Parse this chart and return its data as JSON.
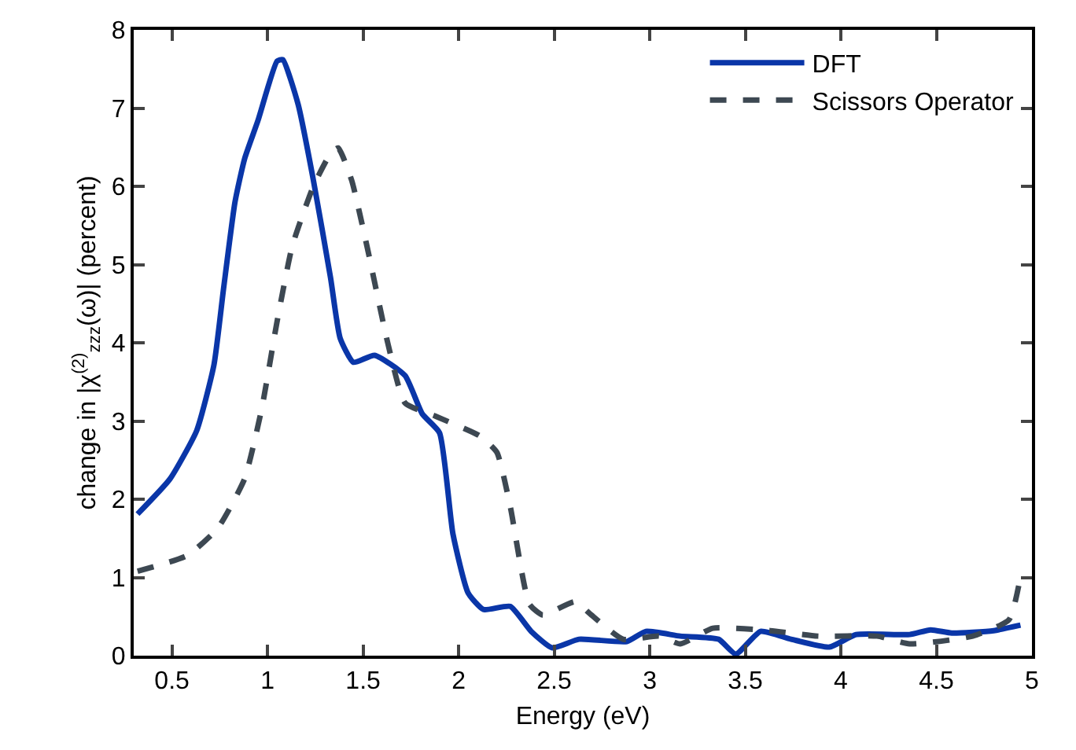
{
  "chart_data": {
    "type": "line",
    "xlabel": "Energy (eV)",
    "ylabel": "change in |χ$^{(2)}$$_{zzz}$(ω)| (percent)",
    "xlim": [
      0.3,
      5
    ],
    "ylim": [
      0,
      8
    ],
    "xticks": [
      0.5,
      1,
      1.5,
      2,
      2.5,
      3,
      3.5,
      4,
      4.5,
      5
    ],
    "yticks": [
      0,
      1,
      2,
      3,
      4,
      5,
      6,
      7,
      8
    ],
    "legend": "top right",
    "marker": "none",
    "series": [
      {
        "name": "DFT",
        "color": "#0a36a8",
        "line_style": "solid",
        "x": [
          0.32,
          0.49,
          0.63,
          0.72,
          0.77,
          0.83,
          0.88,
          0.95,
          1.05,
          1.08,
          1.16,
          1.24,
          1.33,
          1.38,
          1.45,
          1.56,
          1.72,
          1.81,
          1.9,
          1.97,
          2.05,
          2.13,
          2.27,
          2.38,
          2.49,
          2.63,
          2.88,
          2.98,
          3.16,
          3.36,
          3.45,
          3.58,
          3.74,
          3.94,
          4.08,
          4.36,
          4.47,
          4.58,
          4.8,
          4.94
        ],
        "values": [
          1.81,
          2.26,
          2.88,
          3.72,
          4.69,
          5.8,
          6.35,
          6.84,
          7.6,
          7.62,
          7.05,
          6.08,
          4.83,
          4.06,
          3.75,
          3.84,
          3.58,
          3.09,
          2.85,
          1.56,
          0.8,
          0.59,
          0.63,
          0.31,
          0.1,
          0.21,
          0.18,
          0.31,
          0.25,
          0.21,
          0.02,
          0.31,
          0.21,
          0.11,
          0.27,
          0.27,
          0.33,
          0.29,
          0.32,
          0.39
        ]
      },
      {
        "name": "Scissors Operator",
        "color": "#3d4852",
        "line_style": "dashed",
        "x": [
          0.32,
          0.58,
          0.74,
          0.88,
          0.97,
          1.05,
          1.13,
          1.24,
          1.33,
          1.37,
          1.44,
          1.52,
          1.63,
          1.72,
          1.88,
          2.11,
          2.2,
          2.27,
          2.37,
          2.44,
          2.61,
          2.69,
          2.86,
          3.05,
          3.16,
          3.33,
          3.63,
          3.88,
          4.19,
          4.36,
          4.69,
          4.88,
          4.94
        ],
        "values": [
          1.08,
          1.28,
          1.63,
          2.26,
          3.16,
          4.27,
          5.24,
          6.0,
          6.42,
          6.49,
          6.08,
          5.24,
          3.99,
          3.23,
          3.06,
          2.81,
          2.6,
          1.91,
          0.66,
          0.52,
          0.69,
          0.53,
          0.21,
          0.25,
          0.15,
          0.35,
          0.32,
          0.25,
          0.25,
          0.15,
          0.25,
          0.46,
          1.01
        ]
      }
    ]
  }
}
